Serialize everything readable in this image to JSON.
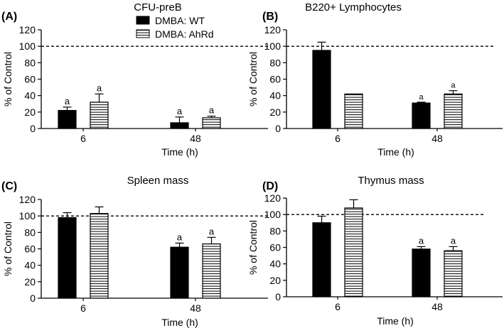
{
  "figure": {
    "legend": [
      {
        "label": "DMBA: WT",
        "fill": "#000000",
        "pattern": "solid"
      },
      {
        "label": "DMBA: AhRd",
        "fill": "#ffffff",
        "pattern": "horizontal-stripes"
      }
    ]
  },
  "chart_data": [
    {
      "panel": "(A)",
      "type": "bar",
      "title": "CFU-preB",
      "categories": [
        "6",
        "48"
      ],
      "series": [
        {
          "name": "DMBA: WT",
          "values": [
            22,
            7
          ],
          "errors": [
            4,
            7
          ]
        },
        {
          "name": "DMBA: AhRd",
          "values": [
            32,
            13
          ],
          "errors": [
            10,
            2
          ]
        }
      ],
      "significance": [
        [
          "a",
          "a"
        ],
        [
          "a",
          "a"
        ]
      ],
      "xlabel": "Time (h)",
      "ylabel": "% of Control",
      "ylim": [
        0,
        120
      ],
      "yticks": [
        0,
        20,
        40,
        60,
        80,
        100,
        120
      ],
      "reference_line": 100
    },
    {
      "panel": "(B)",
      "type": "bar",
      "title": "B220+ Lymphocytes",
      "categories": [
        "6",
        "48"
      ],
      "series": [
        {
          "name": "DMBA: WT",
          "values": [
            95,
            31
          ],
          "errors": [
            10,
            1
          ]
        },
        {
          "name": "DMBA: AhRd",
          "values": [
            42,
            42
          ],
          "errors": [
            0,
            4
          ]
        }
      ],
      "significance": [
        [
          "",
          "a"
        ],
        [
          "",
          "a"
        ]
      ],
      "xlabel": "Time (h)",
      "ylabel": "% of Control",
      "ylim": [
        0,
        120
      ],
      "yticks": [
        0,
        20,
        40,
        60,
        80,
        100,
        120
      ],
      "reference_line": 100
    },
    {
      "panel": "(C)",
      "type": "bar",
      "title": "Spleen mass",
      "categories": [
        "6",
        "48"
      ],
      "series": [
        {
          "name": "DMBA: WT",
          "values": [
            98,
            62
          ],
          "errors": [
            6,
            5
          ]
        },
        {
          "name": "DMBA: AhRd",
          "values": [
            103,
            66
          ],
          "errors": [
            8,
            8
          ]
        }
      ],
      "significance": [
        [
          "",
          "a"
        ],
        [
          "",
          "a"
        ]
      ],
      "xlabel": "Time (h)",
      "ylabel": "% of Control",
      "ylim": [
        0,
        120
      ],
      "yticks": [
        0,
        20,
        40,
        60,
        80,
        100,
        120
      ],
      "reference_line": 100
    },
    {
      "panel": "(D)",
      "type": "bar",
      "title": "Thymus mass",
      "categories": [
        "6",
        "48"
      ],
      "series": [
        {
          "name": "DMBA: WT",
          "values": [
            90,
            58
          ],
          "errors": [
            8,
            3
          ]
        },
        {
          "name": "DMBA: AhRd",
          "values": [
            108,
            56
          ],
          "errors": [
            10,
            5
          ]
        }
      ],
      "significance": [
        [
          "",
          "a"
        ],
        [
          "",
          "a"
        ]
      ],
      "xlabel": "Time (h)",
      "ylabel": "% of Control",
      "ylim": [
        0,
        120
      ],
      "yticks": [
        0,
        20,
        40,
        60,
        80,
        100,
        120
      ],
      "reference_line": 100
    }
  ]
}
